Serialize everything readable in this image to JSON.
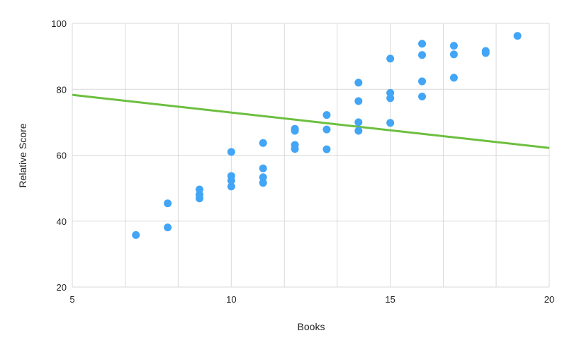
{
  "chart_data": {
    "type": "scatter",
    "title": "",
    "xlabel": "Books",
    "ylabel": "Relative Score",
    "xlim": [
      5,
      20
    ],
    "ylim": [
      20,
      100
    ],
    "x_ticks": [
      5,
      10,
      15,
      20
    ],
    "x_tick_labels": [
      "5",
      "10",
      "15",
      "20"
    ],
    "y_ticks": [
      20,
      40,
      60,
      80,
      100
    ],
    "y_tick_labels": [
      "20",
      "40",
      "60",
      "80",
      "100"
    ],
    "x_gridlines": [
      5,
      6.67,
      8.33,
      10,
      11.67,
      13.33,
      15,
      16.67,
      18.33,
      20
    ],
    "y_gridlines": [
      20,
      40,
      60,
      80,
      100
    ],
    "grid": true,
    "legend": "none",
    "colors": {
      "points": "#42a5f5",
      "trendline": "#6cbf3f",
      "grid": "#d9d9d9"
    },
    "series": [
      {
        "type": "scatter",
        "points": [
          {
            "x": 7,
            "y": 35.8
          },
          {
            "x": 8,
            "y": 45.4
          },
          {
            "x": 8,
            "y": 38.1
          },
          {
            "x": 9,
            "y": 49.6
          },
          {
            "x": 9,
            "y": 48.0
          },
          {
            "x": 9,
            "y": 46.9
          },
          {
            "x": 10,
            "y": 61.0
          },
          {
            "x": 10,
            "y": 53.7
          },
          {
            "x": 10,
            "y": 52.3
          },
          {
            "x": 10,
            "y": 50.5
          },
          {
            "x": 11,
            "y": 63.7
          },
          {
            "x": 11,
            "y": 56.0
          },
          {
            "x": 11,
            "y": 53.3
          },
          {
            "x": 11,
            "y": 51.6
          },
          {
            "x": 12,
            "y": 68.0
          },
          {
            "x": 12,
            "y": 67.4
          },
          {
            "x": 12,
            "y": 63.1
          },
          {
            "x": 12,
            "y": 61.9
          },
          {
            "x": 13,
            "y": 72.2
          },
          {
            "x": 13,
            "y": 67.8
          },
          {
            "x": 13,
            "y": 61.8
          },
          {
            "x": 14,
            "y": 82.0
          },
          {
            "x": 14,
            "y": 76.4
          },
          {
            "x": 14,
            "y": 70.0
          },
          {
            "x": 14,
            "y": 67.4
          },
          {
            "x": 15,
            "y": 89.3
          },
          {
            "x": 15,
            "y": 78.9
          },
          {
            "x": 15,
            "y": 77.3
          },
          {
            "x": 15,
            "y": 69.8
          },
          {
            "x": 16,
            "y": 93.8
          },
          {
            "x": 16,
            "y": 90.4
          },
          {
            "x": 16,
            "y": 82.4
          },
          {
            "x": 16,
            "y": 77.8
          },
          {
            "x": 17,
            "y": 93.2
          },
          {
            "x": 17,
            "y": 90.6
          },
          {
            "x": 17,
            "y": 83.5
          },
          {
            "x": 18,
            "y": 91.6
          },
          {
            "x": 18,
            "y": 91.0
          },
          {
            "x": 19,
            "y": 96.2
          }
        ]
      },
      {
        "type": "line",
        "points": [
          {
            "x": 5,
            "y": 78.3
          },
          {
            "x": 20,
            "y": 62.2
          }
        ]
      }
    ]
  }
}
